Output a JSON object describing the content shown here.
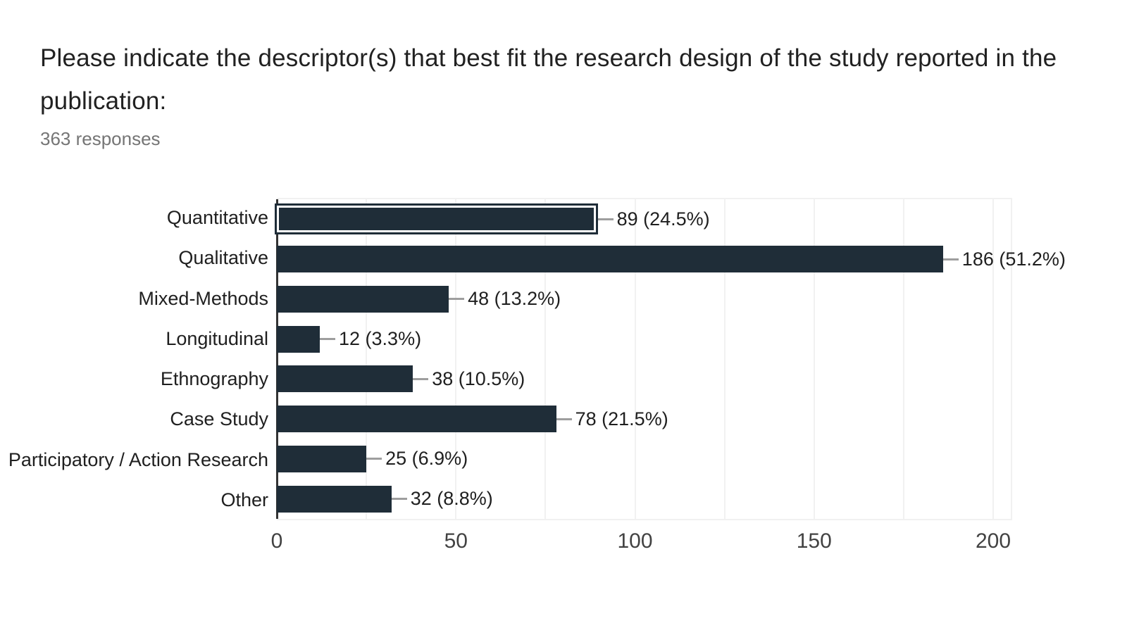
{
  "header": {
    "title": "Please indicate the descriptor(s) that best fit the research design of the study reported in the publication:",
    "responses_label": "363 responses"
  },
  "chart_data": {
    "type": "bar",
    "orientation": "horizontal",
    "title": "Please indicate the descriptor(s) that best fit the research design of the study reported in the publication:",
    "subtitle": "363 responses",
    "total_responses": 363,
    "categories": [
      "Quantitative",
      "Qualitative",
      "Mixed-Methods",
      "Longitudinal",
      "Ethnography",
      "Case Study",
      "Participatory / Action Research",
      "Other"
    ],
    "values": [
      89,
      186,
      48,
      12,
      38,
      78,
      25,
      32
    ],
    "percents": [
      24.5,
      51.2,
      13.2,
      3.3,
      10.5,
      21.5,
      6.9,
      8.8
    ],
    "value_labels": [
      "89 (24.5%)",
      "186 (51.2%)",
      "48 (13.2%)",
      "12 (3.3%)",
      "38 (10.5%)",
      "78 (21.5%)",
      "25 (6.9%)",
      "32 (8.8%)"
    ],
    "xlabel": "",
    "ylabel": "",
    "xlim": [
      0,
      200
    ],
    "xticks": [
      0,
      50,
      100,
      150,
      200
    ],
    "minor_gridline_step": 25,
    "grid": true,
    "legend": "none",
    "selected_index": 0,
    "colors": {
      "bar": "#1f2d38",
      "gridline": "#f1f1f1",
      "axis_line": "#333333",
      "leader_line": "#9e9e9e",
      "title_text": "#212121",
      "subtitle_text": "#757575",
      "tick_text": "#424242",
      "label_text": "#1f1f1f"
    }
  }
}
